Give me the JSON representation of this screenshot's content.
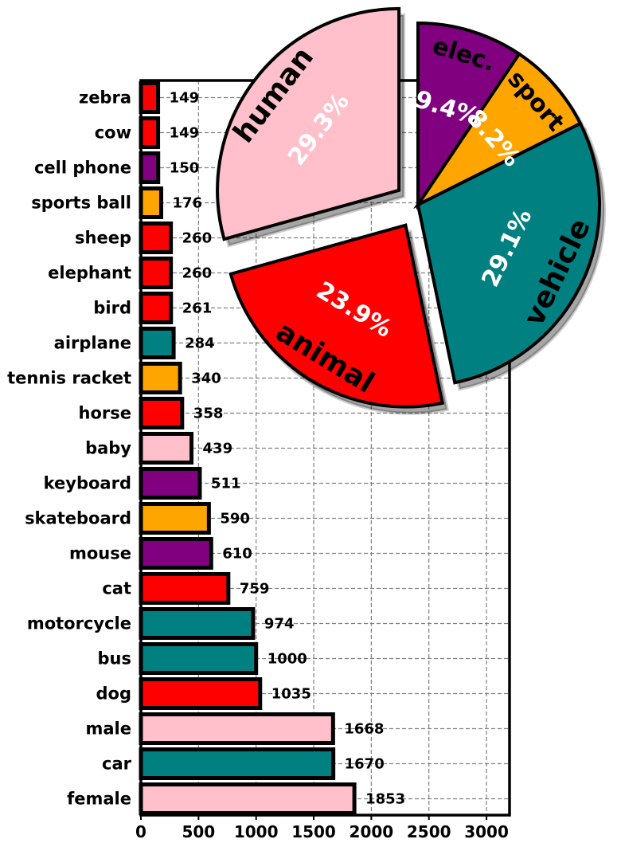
{
  "chart_data": [
    {
      "type": "bar",
      "orientation": "horizontal",
      "categories": [
        "zebra",
        "cow",
        "cell phone",
        "sports ball",
        "sheep",
        "elephant",
        "bird",
        "airplane",
        "tennis racket",
        "horse",
        "baby",
        "keyboard",
        "skateboard",
        "mouse",
        "cat",
        "motorcycle",
        "bus",
        "dog",
        "male",
        "car",
        "female"
      ],
      "values": [
        149,
        149,
        150,
        176,
        260,
        260,
        261,
        284,
        340,
        358,
        439,
        511,
        590,
        610,
        759,
        974,
        1000,
        1035,
        1668,
        1670,
        1853
      ],
      "groups": [
        "animal",
        "animal",
        "electronic",
        "sport",
        "animal",
        "animal",
        "animal",
        "vehicle",
        "sport",
        "animal",
        "human",
        "electronic",
        "sport",
        "electronic",
        "animal",
        "vehicle",
        "vehicle",
        "animal",
        "human",
        "vehicle",
        "human"
      ],
      "xticks": [
        "0",
        "500",
        "1000",
        "1500",
        "2000",
        "2500",
        "3000"
      ],
      "xlim": [
        0,
        3200
      ],
      "grid": true,
      "title": "",
      "xlabel": "",
      "ylabel": ""
    },
    {
      "type": "pie",
      "labels": [
        "human",
        "elec.",
        "sport",
        "vehicle",
        "animal"
      ],
      "values": [
        29.3,
        9.4,
        8.2,
        29.1,
        23.9
      ],
      "pct_labels": [
        "29.3%",
        "9.4%",
        "8.2%",
        "29.1%",
        "23.9%"
      ],
      "exploded": [
        "human",
        "animal"
      ],
      "shadow": true
    }
  ],
  "colors": {
    "human": "#ffc0cb",
    "electronic": "#800080",
    "sport": "#ffa500",
    "vehicle": "#008080",
    "animal": "#ff0000",
    "outline": "#000000",
    "grid": "#808080"
  }
}
